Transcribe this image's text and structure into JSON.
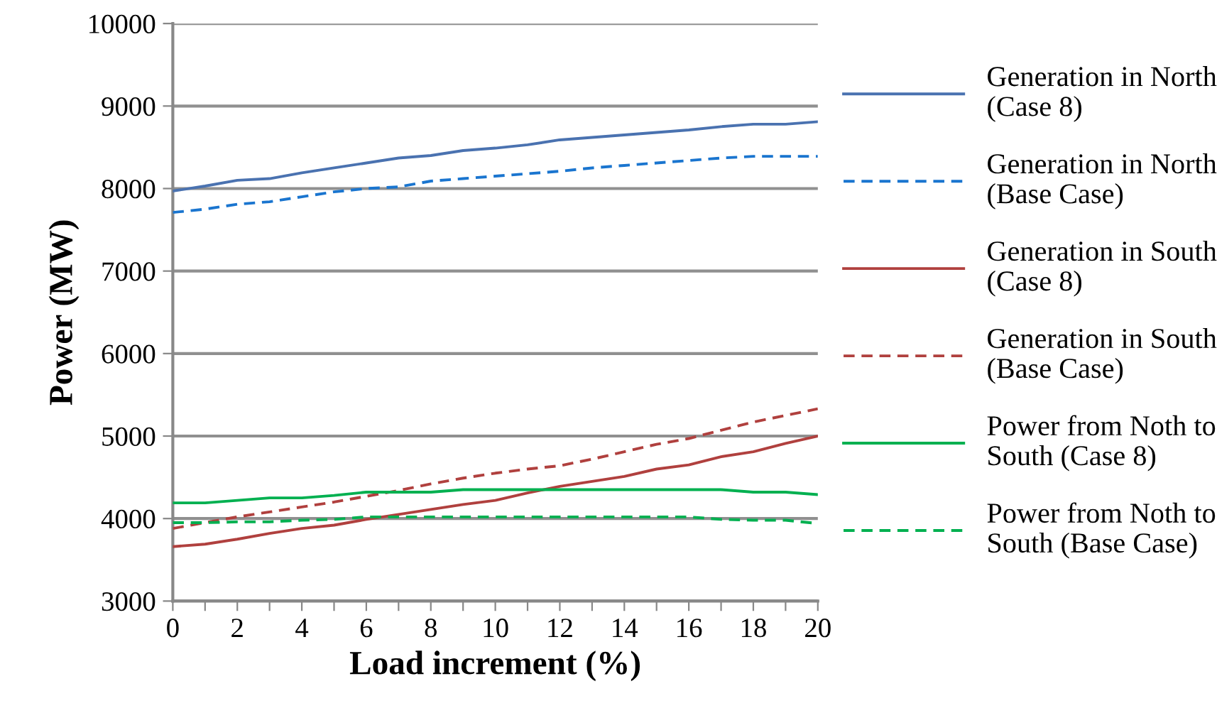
{
  "chart_data": {
    "type": "line",
    "xlabel": "Load increment (%)",
    "ylabel": "Power (MW)",
    "categories": [
      "0",
      null,
      "2",
      null,
      "4",
      null,
      "6",
      null,
      "8",
      null,
      "10",
      null,
      "12",
      null,
      "14",
      null,
      "16",
      null,
      "18",
      null,
      "20"
    ],
    "ylim": [
      3000,
      10000
    ],
    "yticks": [
      3000,
      4000,
      5000,
      6000,
      7000,
      8000,
      9000,
      10000
    ],
    "grid": "y",
    "legend": "right",
    "marker": "none",
    "series": [
      {
        "name": "Generation in North\n(Case 8)",
        "color": "#4a72b0",
        "line_style": "solid",
        "values": [
          7970,
          8030,
          8100,
          8120,
          8190,
          8250,
          8310,
          8370,
          8400,
          8460,
          8490,
          8530,
          8590,
          8620,
          8650,
          8680,
          8710,
          8750,
          8780,
          8780,
          8810
        ]
      },
      {
        "name": "Generation in North\n(Base Case)",
        "color": "#1a75cf",
        "line_style": "dashed",
        "values": [
          7710,
          7750,
          7810,
          7840,
          7900,
          7960,
          8000,
          8020,
          8090,
          8120,
          8150,
          8180,
          8210,
          8250,
          8280,
          8310,
          8340,
          8370,
          8390,
          8390,
          8390
        ]
      },
      {
        "name": "Generation in South\n(Case 8)",
        "color": "#b0403e",
        "line_style": "solid",
        "values": [
          3660,
          3690,
          3750,
          3820,
          3880,
          3920,
          3990,
          4050,
          4110,
          4170,
          4220,
          4310,
          4390,
          4450,
          4510,
          4600,
          4650,
          4750,
          4810,
          4910,
          5000
        ]
      },
      {
        "name": "Generation in South\n(Base Case)",
        "color": "#b0403e",
        "line_style": "dashed",
        "values": [
          3880,
          3950,
          4020,
          4080,
          4140,
          4200,
          4270,
          4340,
          4420,
          4490,
          4550,
          4600,
          4640,
          4720,
          4810,
          4900,
          4970,
          5070,
          5170,
          5250,
          5330
        ]
      },
      {
        "name": "Power from Noth to\nSouth (Case 8)",
        "color": "#00b050",
        "line_style": "solid",
        "values": [
          4190,
          4190,
          4220,
          4250,
          4250,
          4280,
          4320,
          4320,
          4320,
          4350,
          4350,
          4350,
          4350,
          4350,
          4350,
          4350,
          4350,
          4350,
          4320,
          4320,
          4290
        ]
      },
      {
        "name": "Power from Noth to\nSouth (Base Case)",
        "color": "#00b050",
        "line_style": "dashed",
        "values": [
          3950,
          3950,
          3960,
          3960,
          3980,
          3990,
          4020,
          4020,
          4020,
          4020,
          4020,
          4020,
          4020,
          4020,
          4020,
          4020,
          4020,
          3990,
          3980,
          3980,
          3940
        ]
      }
    ]
  }
}
